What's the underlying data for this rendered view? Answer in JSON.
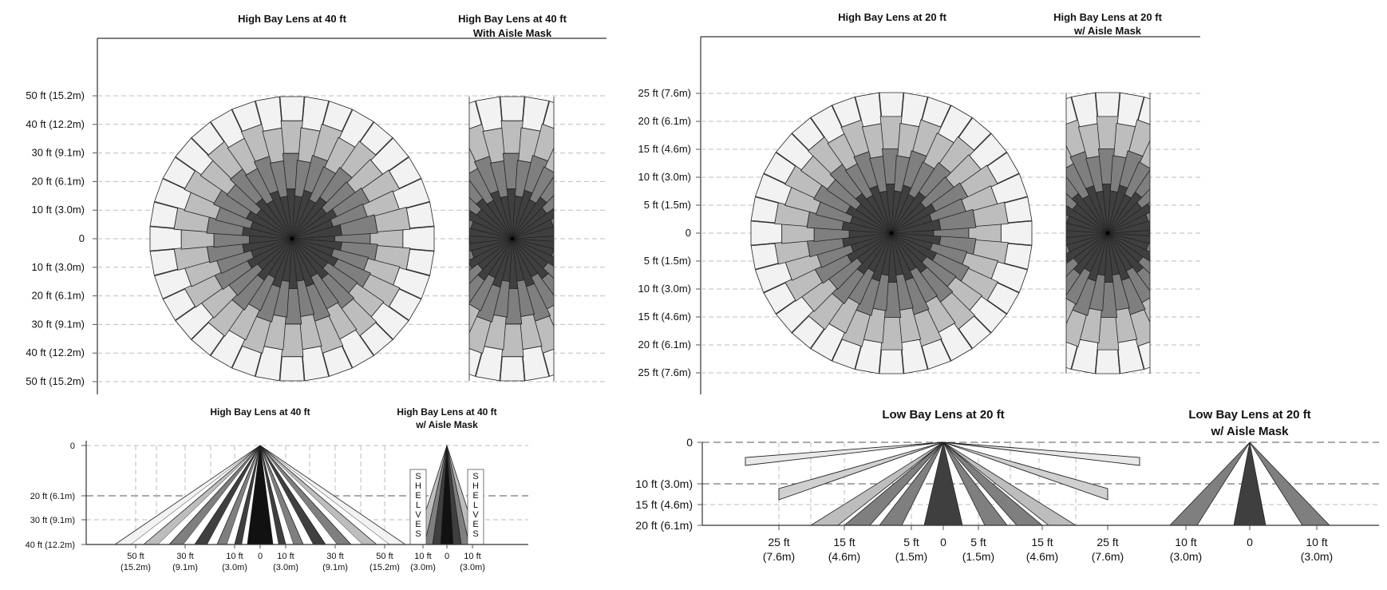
{
  "panels": {
    "top_left": {
      "title_main": "High Bay Lens at 40 ft",
      "title_mask_line1": "High Bay Lens at 40 ft",
      "title_mask_line2": "With Aisle Mask",
      "y_labels": [
        "50 ft (15.2m)",
        "40 ft (12.2m)",
        "30 ft (9.1m)",
        "20 ft (6.1m)",
        "10 ft (3.0m)",
        "0",
        "10 ft (3.0m)",
        "20 ft (6.1m)",
        "30 ft (9.1m)",
        "40 ft (12.2m)",
        "50 ft (15.2m)"
      ]
    },
    "top_right": {
      "title_main": "High Bay Lens at 20 ft",
      "title_mask_line1": "High Bay Lens at 20 ft",
      "title_mask_line2": "w/ Aisle Mask",
      "y_labels": [
        "25 ft (7.6m)",
        "20 ft (6.1m)",
        "15 ft (4.6m)",
        "10 ft (3.0m)",
        "5 ft (1.5m)",
        "0",
        "5 ft (1.5m)",
        "10 ft (3.0m)",
        "15 ft (4.6m)",
        "20 ft (6.1m)",
        "25 ft (7.6m)"
      ]
    },
    "bottom_left": {
      "title_main": "High Bay Lens at 40 ft",
      "title_mask_line1": "High Bay Lens at 40 ft",
      "title_mask_line2": "w/ Aisle Mask",
      "y_labels": [
        "0",
        "20 ft (6.1m)",
        "30 ft (9.1m)",
        "40 ft (12.2m)"
      ],
      "x_labels_top": [
        "50 ft",
        "30 ft",
        "10 ft",
        "0",
        "10 ft",
        "30 ft",
        "50 ft",
        "10 ft",
        "0",
        "10 ft"
      ],
      "x_labels_bottom": [
        "(15.2m)",
        "(9.1m)",
        "(3.0m)",
        "",
        "(3.0m)",
        "(9.1m)",
        "(15.2m)",
        "(3.0m)",
        "",
        "(3.0m)"
      ],
      "shelves_label": [
        "S",
        "H",
        "E",
        "L",
        "V",
        "E",
        "S"
      ]
    },
    "bottom_right": {
      "title_main": "Low Bay Lens at 20 ft",
      "title_mask_line1": "Low Bay Lens at 20 ft",
      "title_mask_line2": "w/ Aisle Mask",
      "y_labels": [
        "0",
        "10 ft (3.0m)",
        "15 ft (4.6m)",
        "20 ft (6.1m)"
      ],
      "x_labels_top": [
        "25 ft",
        "15 ft",
        "5 ft",
        "0",
        "5 ft",
        "15 ft",
        "25 ft",
        "10 ft",
        "0",
        "10 ft"
      ],
      "x_labels_bottom": [
        "(7.6m)",
        "(4.6m)",
        "(1.5m)",
        "",
        "(1.5m)",
        "(4.6m)",
        "(7.6m)",
        "(3.0m)",
        "",
        "(3.0m)"
      ]
    }
  },
  "colors": {
    "zone_far": "#f2f2f2",
    "zone_mid": "#bdbdbd",
    "zone_near": "#7f7f7f",
    "zone_center": "#3f3f3f",
    "zone_core": "#111111",
    "outline": "#222222"
  }
}
